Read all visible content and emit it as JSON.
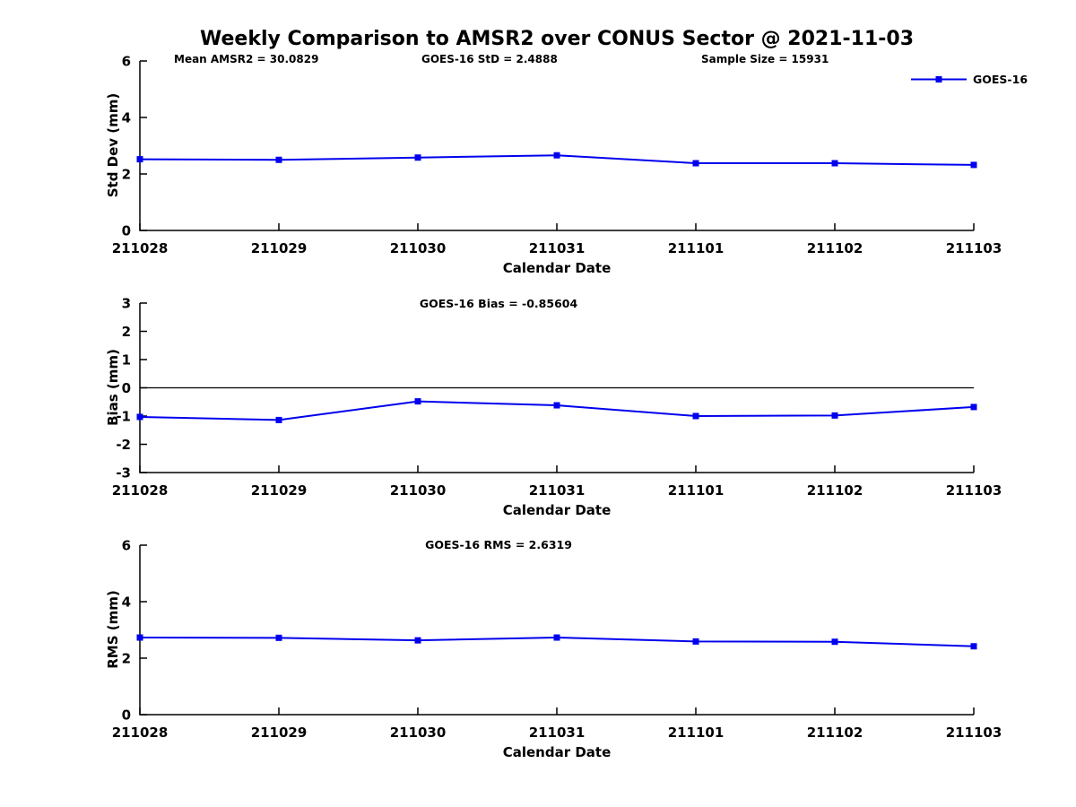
{
  "figure": {
    "title": "Weekly Comparison to AMSR2 over CONUS Sector @ 2021-11-03",
    "annotations": {
      "mean": "Mean AMSR2 = 30.0829",
      "std": "GOES-16 StD = 2.4888",
      "sample": "Sample Size = 15931"
    },
    "legend": {
      "label": "GOES-16"
    },
    "line_color": "#0000EE",
    "axis_color": "#000000"
  },
  "chart_data": [
    {
      "type": "line",
      "title": "",
      "xlabel": "Calendar Date",
      "ylabel": "Std Dev (mm)",
      "categories": [
        "211028",
        "211029",
        "211030",
        "211031",
        "211101",
        "211102",
        "211103"
      ],
      "series": [
        {
          "name": "GOES-16",
          "values": [
            2.52,
            2.5,
            2.58,
            2.66,
            2.38,
            2.38,
            2.32
          ]
        }
      ],
      "ylim": [
        0,
        6
      ],
      "yticks": [
        0,
        2,
        4,
        6
      ],
      "zero_line": false,
      "grid": false,
      "legend_position": "top-right"
    },
    {
      "type": "line",
      "title": "GOES-16 Bias  = -0.85604",
      "xlabel": "Calendar Date",
      "ylabel": "Bias (mm)",
      "categories": [
        "211028",
        "211029",
        "211030",
        "211031",
        "211101",
        "211102",
        "211103"
      ],
      "series": [
        {
          "name": "GOES-16",
          "values": [
            -1.03,
            -1.14,
            -0.48,
            -0.62,
            -1.0,
            -0.98,
            -0.68
          ]
        }
      ],
      "ylim": [
        -3,
        3
      ],
      "yticks": [
        -3,
        -2,
        -1,
        0,
        1,
        2,
        3
      ],
      "zero_line": true,
      "grid": false,
      "legend_position": "none"
    },
    {
      "type": "line",
      "title": "GOES-16 RMS = 2.6319",
      "xlabel": "Calendar Date",
      "ylabel": "RMS (mm)",
      "categories": [
        "211028",
        "211029",
        "211030",
        "211031",
        "211101",
        "211102",
        "211103"
      ],
      "series": [
        {
          "name": "GOES-16",
          "values": [
            2.73,
            2.72,
            2.63,
            2.73,
            2.59,
            2.58,
            2.42
          ]
        }
      ],
      "ylim": [
        0,
        6
      ],
      "yticks": [
        0,
        2,
        4,
        6
      ],
      "zero_line": false,
      "grid": false,
      "legend_position": "none"
    }
  ]
}
